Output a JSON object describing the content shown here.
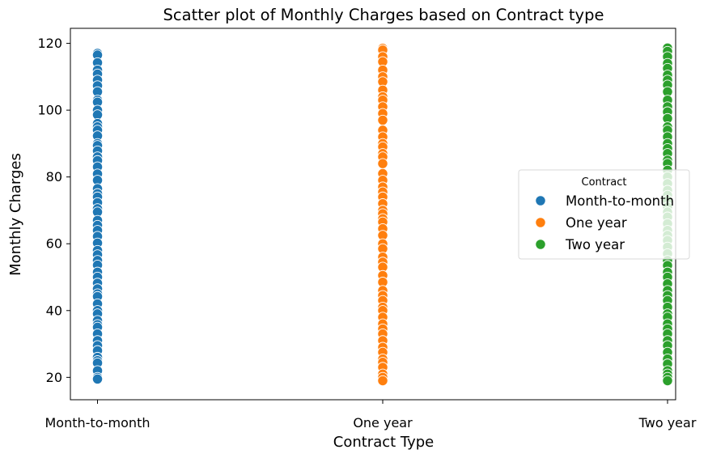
{
  "chart_data": {
    "type": "scatter",
    "title": "Scatter plot of Monthly Charges based on Contract type",
    "xlabel": "Contract Type",
    "ylabel": "Monthly Charges",
    "categories": [
      "Month-to-month",
      "One year",
      "Two year"
    ],
    "ylim": [
      13.3,
      124.5
    ],
    "yticks": [
      20,
      40,
      60,
      80,
      100,
      120
    ],
    "grid": false,
    "legend": {
      "title": "Contract",
      "placement": "center-right"
    },
    "series": [
      {
        "name": "Month-to-month",
        "color": "#1f77b4",
        "category": "Month-to-month",
        "values": [
          117.0,
          116.5,
          114.2,
          112.0,
          110.8,
          109.0,
          107.3,
          105.5,
          103.0,
          102.4,
          100.0,
          98.6,
          96.0,
          95.0,
          94.0,
          92.3,
          90.0,
          89.4,
          87.8,
          86.0,
          84.9,
          83.0,
          80.9,
          79.0,
          76.5,
          75.0,
          74.0,
          72.3,
          70.5,
          69.5,
          67.0,
          65.5,
          64.0,
          62.2,
          60.2,
          58.0,
          56.7,
          55.0,
          53.6,
          51.5,
          50.0,
          48.2,
          46.5,
          45.0,
          44.2,
          42.0,
          40.0,
          39.0,
          37.0,
          35.8,
          35.0,
          33.0,
          31.0,
          29.5,
          28.0,
          26.0,
          25.0,
          24.3,
          22.0,
          20.0,
          19.5
        ]
      },
      {
        "name": "One year",
        "color": "#ff7f0e",
        "category": "One year",
        "values": [
          118.5,
          118.0,
          116.0,
          114.5,
          112.0,
          110.0,
          108.5,
          106.0,
          104.0,
          103.0,
          101.0,
          99.0,
          97.0,
          94.0,
          92.0,
          90.0,
          89.0,
          87.0,
          86.0,
          84.0,
          81.0,
          79.0,
          77.0,
          75.5,
          74.0,
          72.0,
          70.0,
          69.0,
          67.5,
          66.5,
          64.5,
          62.5,
          60.0,
          58.5,
          56.0,
          54.5,
          53.0,
          50.5,
          48.5,
          46.0,
          44.5,
          43.0,
          41.0,
          40.0,
          38.0,
          36.0,
          34.5,
          33.0,
          31.0,
          29.0,
          27.5,
          25.5,
          24.5,
          23.0,
          21.0,
          20.0,
          19.0
        ]
      },
      {
        "name": "Two year",
        "color": "#2ca02c",
        "category": "Two year",
        "values": [
          118.6,
          117.6,
          116.0,
          114.0,
          112.5,
          110.5,
          109.0,
          107.5,
          105.5,
          103.0,
          101.0,
          99.5,
          97.5,
          95.0,
          94.0,
          92.0,
          90.0,
          88.5,
          87.0,
          85.0,
          84.0,
          82.0,
          80.0,
          78.0,
          76.0,
          74.5,
          73.0,
          71.0,
          69.5,
          68.0,
          66.0,
          64.0,
          62.5,
          61.0,
          59.0,
          57.0,
          55.0,
          53.5,
          51.5,
          50.0,
          48.0,
          46.0,
          44.5,
          43.0,
          41.0,
          39.0,
          38.0,
          36.0,
          34.5,
          33.0,
          31.0,
          29.5,
          27.5,
          25.5,
          24.0,
          22.0,
          21.0,
          20.0,
          19.0
        ]
      }
    ]
  }
}
